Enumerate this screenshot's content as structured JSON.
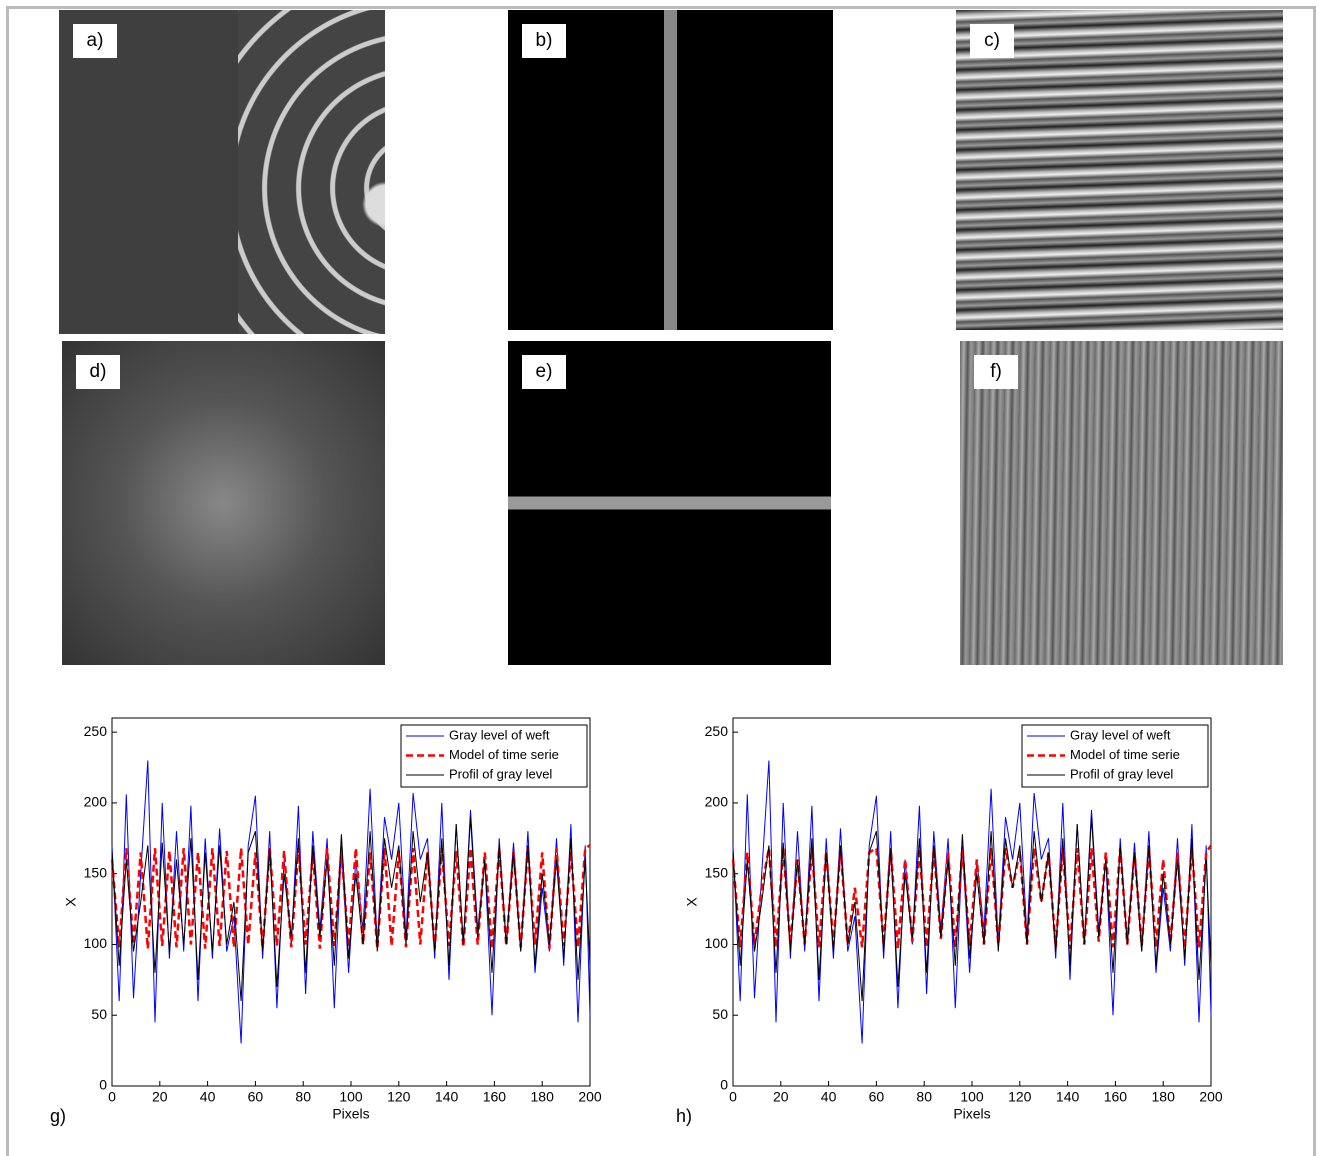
{
  "panels": [
    {
      "label": "a)"
    },
    {
      "label": "b)"
    },
    {
      "label": "c)"
    },
    {
      "label": "d)"
    },
    {
      "label": "e)"
    },
    {
      "label": "f)"
    }
  ],
  "chart_data": [
    {
      "type": "line",
      "panel_label": "g)",
      "xlabel": "Pixels",
      "ylabel": "X",
      "xlim": [
        0,
        200
      ],
      "xticks": [
        0,
        20,
        40,
        60,
        80,
        100,
        120,
        140,
        160,
        180,
        200
      ],
      "ylim": [
        0,
        260
      ],
      "yticks": [
        0,
        50,
        100,
        150,
        200,
        250
      ],
      "legend": "upper right",
      "x": [
        0,
        3,
        6,
        9,
        12,
        15,
        18,
        21,
        24,
        27,
        30,
        33,
        36,
        39,
        42,
        45,
        48,
        51,
        54,
        57,
        60,
        63,
        66,
        69,
        72,
        75,
        78,
        81,
        84,
        87,
        90,
        93,
        96,
        99,
        102,
        105,
        108,
        111,
        114,
        117,
        120,
        123,
        126,
        129,
        132,
        135,
        138,
        141,
        144,
        147,
        150,
        153,
        156,
        159,
        162,
        165,
        168,
        171,
        174,
        177,
        180,
        183,
        186,
        189,
        192,
        195,
        198,
        200
      ],
      "series": [
        {
          "name": "Gray level of weft",
          "color": "#0000ff",
          "dash": "solid",
          "values": [
            170,
            60,
            206,
            62,
            150,
            230,
            45,
            200,
            90,
            180,
            95,
            198,
            60,
            175,
            90,
            182,
            95,
            120,
            30,
            170,
            205,
            90,
            180,
            55,
            160,
            100,
            198,
            65,
            180,
            110,
            175,
            55,
            170,
            80,
            160,
            110,
            210,
            100,
            190,
            160,
            200,
            105,
            207,
            160,
            175,
            90,
            200,
            75,
            185,
            100,
            195,
            110,
            160,
            50,
            175,
            100,
            172,
            95,
            180,
            80,
            140,
            95,
            175,
            85,
            185,
            45,
            170,
            50
          ]
        },
        {
          "name": "Model of time serie",
          "color": "#ff0000",
          "dash": "dashed",
          "values": [
            160,
            98,
            168,
            100,
            165,
            97,
            168,
            99,
            166,
            98,
            168,
            100,
            165,
            97,
            168,
            99,
            166,
            98,
            168,
            100,
            165,
            97,
            168,
            99,
            166,
            98,
            168,
            100,
            165,
            97,
            168,
            99,
            166,
            98,
            168,
            100,
            165,
            97,
            168,
            99,
            166,
            98,
            168,
            100,
            165,
            97,
            168,
            99,
            166,
            98,
            168,
            100,
            165,
            97,
            168,
            99,
            166,
            98,
            168,
            100,
            165,
            97,
            168,
            99,
            166,
            98,
            168,
            170
          ]
        },
        {
          "name": "Profil of gray level",
          "color": "#000000",
          "dash": "solid",
          "values": [
            165,
            85,
            160,
            95,
            130,
            170,
            80,
            172,
            95,
            160,
            100,
            175,
            75,
            165,
            95,
            170,
            100,
            130,
            60,
            165,
            180,
            95,
            168,
            70,
            150,
            105,
            175,
            80,
            170,
            105,
            160,
            85,
            178,
            90,
            150,
            100,
            180,
            95,
            175,
            140,
            170,
            100,
            180,
            130,
            165,
            95,
            175,
            85,
            185,
            100,
            190,
            105,
            160,
            80,
            170,
            100,
            165,
            95,
            170,
            85,
            150,
            100,
            160,
            90,
            175,
            75,
            160,
            85
          ]
        }
      ]
    },
    {
      "type": "line",
      "panel_label": "h)",
      "xlabel": "Pixels",
      "ylabel": "X",
      "xlim": [
        0,
        200
      ],
      "xticks": [
        0,
        20,
        40,
        60,
        80,
        100,
        120,
        140,
        160,
        180,
        200
      ],
      "ylim": [
        0,
        260
      ],
      "yticks": [
        0,
        50,
        100,
        150,
        200,
        250
      ],
      "legend": "upper right",
      "x": [
        0,
        3,
        6,
        9,
        12,
        15,
        18,
        21,
        24,
        27,
        30,
        33,
        36,
        39,
        42,
        45,
        48,
        51,
        54,
        57,
        60,
        63,
        66,
        69,
        72,
        75,
        78,
        81,
        84,
        87,
        90,
        93,
        96,
        99,
        102,
        105,
        108,
        111,
        114,
        117,
        120,
        123,
        126,
        129,
        132,
        135,
        138,
        141,
        144,
        147,
        150,
        153,
        156,
        159,
        162,
        165,
        168,
        171,
        174,
        177,
        180,
        183,
        186,
        189,
        192,
        195,
        198,
        200
      ],
      "series": [
        {
          "name": "Gray level of weft",
          "color": "#0000ff",
          "dash": "solid",
          "values": [
            170,
            60,
            206,
            62,
            150,
            230,
            45,
            200,
            90,
            180,
            95,
            198,
            60,
            175,
            90,
            182,
            95,
            120,
            30,
            170,
            205,
            90,
            180,
            55,
            160,
            100,
            198,
            65,
            180,
            110,
            175,
            55,
            170,
            80,
            160,
            110,
            210,
            100,
            190,
            160,
            200,
            105,
            207,
            160,
            175,
            90,
            200,
            75,
            185,
            100,
            195,
            110,
            160,
            50,
            175,
            100,
            172,
            95,
            180,
            80,
            140,
            95,
            175,
            85,
            185,
            45,
            170,
            50
          ]
        },
        {
          "name": "Model of time serie",
          "color": "#ff0000",
          "dash": "dashed",
          "values": [
            160,
            98,
            165,
            100,
            140,
            168,
            98,
            168,
            100,
            160,
            100,
            168,
            98,
            166,
            100,
            168,
            100,
            140,
            98,
            165,
            168,
            100,
            168,
            97,
            160,
            102,
            168,
            98,
            168,
            104,
            165,
            98,
            168,
            99,
            160,
            100,
            168,
            100,
            168,
            140,
            166,
            100,
            168,
            130,
            165,
            98,
            168,
            97,
            168,
            100,
            168,
            102,
            165,
            98,
            168,
            100,
            165,
            99,
            168,
            98,
            160,
            100,
            165,
            97,
            168,
            98,
            165,
            170
          ]
        },
        {
          "name": "Profil of gray level",
          "color": "#000000",
          "dash": "solid",
          "values": [
            165,
            85,
            160,
            95,
            130,
            170,
            80,
            172,
            95,
            160,
            100,
            175,
            75,
            165,
            95,
            170,
            100,
            130,
            60,
            165,
            180,
            95,
            168,
            70,
            150,
            105,
            175,
            80,
            170,
            105,
            160,
            85,
            178,
            90,
            150,
            100,
            180,
            95,
            175,
            140,
            170,
            100,
            180,
            130,
            165,
            95,
            175,
            85,
            185,
            100,
            190,
            105,
            160,
            80,
            170,
            100,
            165,
            95,
            170,
            85,
            150,
            100,
            160,
            90,
            175,
            75,
            160,
            85
          ]
        }
      ]
    }
  ]
}
